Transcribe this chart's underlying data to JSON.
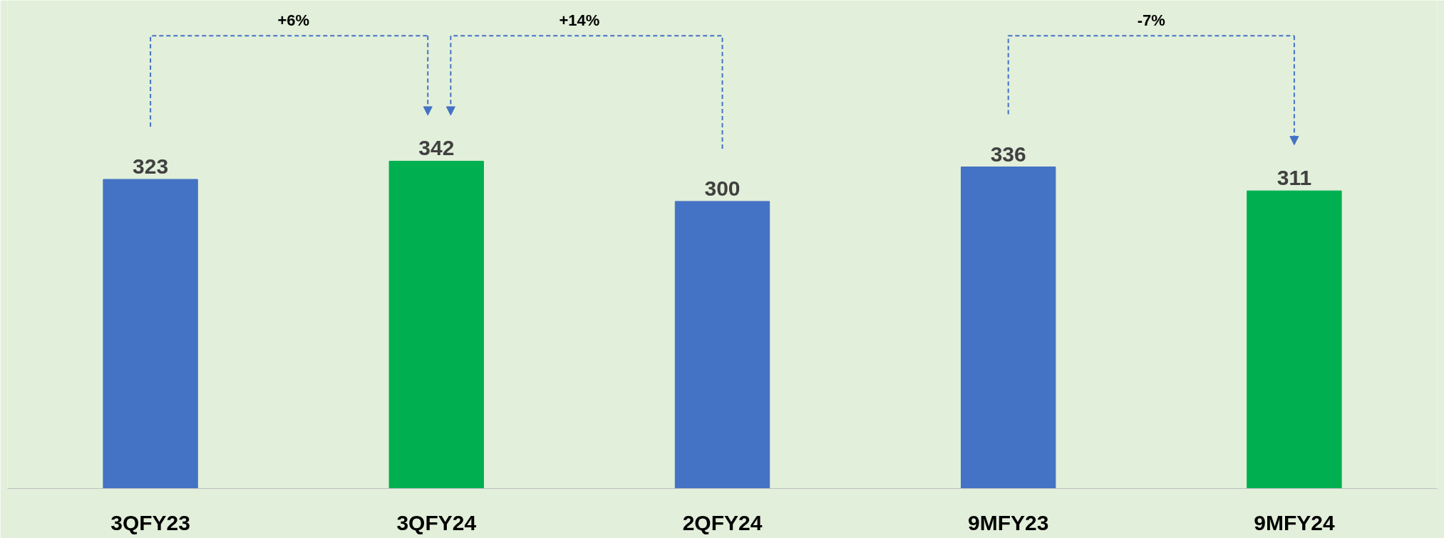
{
  "chart_data": {
    "type": "bar",
    "categories": [
      "3QFY23",
      "3QFY24",
      "2QFY24",
      "9MFY23",
      "9MFY24"
    ],
    "values": [
      323,
      342,
      300,
      336,
      311
    ],
    "colors": [
      "#4472c4",
      "#00b050",
      "#4472c4",
      "#4472c4",
      "#00b050"
    ],
    "data_labels": true,
    "ylim": [
      0,
      510
    ],
    "tick_labels": "x",
    "annotations": [
      "+6%",
      "+14%",
      "-7%"
    ]
  }
}
